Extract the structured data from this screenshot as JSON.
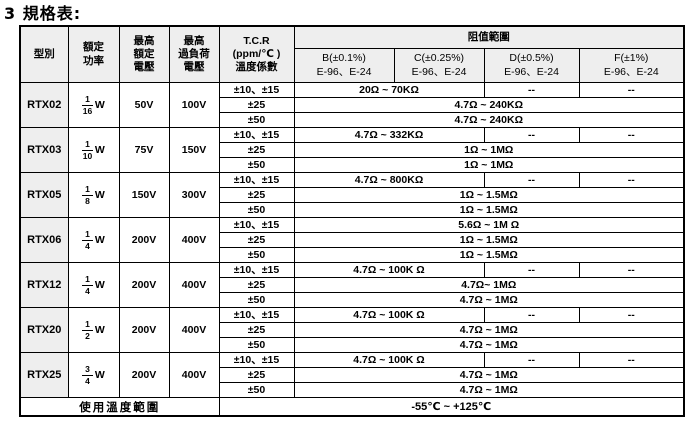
{
  "title": "3 規格表:",
  "table": {
    "header": {
      "model": "型別",
      "rated_power": "額定\n功率",
      "max_rated_voltage": "最高\n額定\n電壓",
      "max_overload_voltage": "最高\n過負荷\n電壓",
      "tcr": "T.C.R\n(ppm/℃ )\n溫度係數",
      "resistance_range": "阻值範圍",
      "tolerance_columns": [
        "B(±0.1%)\nE-96、E-24",
        "C(±0.25%)\nE-96、E-24",
        "D(±0.5%)\nE-96、E-24",
        "F(±1%)\nE-96、E-24"
      ]
    },
    "groups": [
      {
        "model": "RTX02",
        "power": {
          "num": "1",
          "den": "16",
          "unit": "W"
        },
        "rated_voltage": "50V",
        "overload_voltage": "100V",
        "rows": [
          {
            "tcr": "±10、±15",
            "cells": [
              {
                "text": "20Ω ~ 70KΩ",
                "span": 2
              },
              {
                "text": "--",
                "span": 1
              },
              {
                "text": "--",
                "span": 1
              }
            ]
          },
          {
            "tcr": "±25",
            "cells": [
              {
                "text": "4.7Ω ~ 240KΩ",
                "span": 4
              }
            ]
          },
          {
            "tcr": "±50",
            "cells": [
              {
                "text": "4.7Ω ~ 240KΩ",
                "span": 4
              }
            ]
          }
        ]
      },
      {
        "model": "RTX03",
        "power": {
          "num": "1",
          "den": "10",
          "unit": "W"
        },
        "rated_voltage": "75V",
        "overload_voltage": "150V",
        "rows": [
          {
            "tcr": "±10、±15",
            "cells": [
              {
                "text": "4.7Ω ~ 332KΩ",
                "span": 2
              },
              {
                "text": "--",
                "span": 1
              },
              {
                "text": "--",
                "span": 1
              }
            ]
          },
          {
            "tcr": "±25",
            "cells": [
              {
                "text": "1Ω ~ 1MΩ",
                "span": 4
              }
            ]
          },
          {
            "tcr": "±50",
            "cells": [
              {
                "text": "1Ω ~ 1MΩ",
                "span": 4
              }
            ]
          }
        ]
      },
      {
        "model": "RTX05",
        "power": {
          "num": "1",
          "den": "8",
          "unit": "W"
        },
        "rated_voltage": "150V",
        "overload_voltage": "300V",
        "rows": [
          {
            "tcr": "±10、±15",
            "cells": [
              {
                "text": "4.7Ω ~ 800KΩ",
                "span": 2
              },
              {
                "text": "--",
                "span": 1
              },
              {
                "text": "--",
                "span": 1
              }
            ]
          },
          {
            "tcr": "±25",
            "cells": [
              {
                "text": "1Ω ~ 1.5MΩ",
                "span": 4
              }
            ]
          },
          {
            "tcr": "±50",
            "cells": [
              {
                "text": "1Ω ~ 1.5MΩ",
                "span": 4
              }
            ]
          }
        ]
      },
      {
        "model": "RTX06",
        "power": {
          "num": "1",
          "den": "4",
          "unit": "W"
        },
        "rated_voltage": "200V",
        "overload_voltage": "400V",
        "rows": [
          {
            "tcr": "±10、±15",
            "cells": [
              {
                "text": "5.6Ω ~ 1M Ω",
                "span": 4
              }
            ]
          },
          {
            "tcr": "±25",
            "cells": [
              {
                "text": "1Ω ~ 1.5MΩ",
                "span": 4
              }
            ]
          },
          {
            "tcr": "±50",
            "cells": [
              {
                "text": "1Ω ~ 1.5MΩ",
                "span": 4
              }
            ]
          }
        ]
      },
      {
        "model": "RTX12",
        "power": {
          "num": "1",
          "den": "4",
          "unit": "W"
        },
        "rated_voltage": "200V",
        "overload_voltage": "400V",
        "rows": [
          {
            "tcr": "±10、±15",
            "cells": [
              {
                "text": "4.7Ω ~ 100K Ω",
                "span": 2
              },
              {
                "text": "--",
                "span": 1
              },
              {
                "text": "--",
                "span": 1
              }
            ]
          },
          {
            "tcr": "±25",
            "cells": [
              {
                "text": "4.7Ω~ 1MΩ",
                "span": 4
              }
            ]
          },
          {
            "tcr": "±50",
            "cells": [
              {
                "text": "4.7Ω ~ 1MΩ",
                "span": 4
              }
            ]
          }
        ]
      },
      {
        "model": "RTX20",
        "power": {
          "num": "1",
          "den": "2",
          "unit": "W"
        },
        "rated_voltage": "200V",
        "overload_voltage": "400V",
        "rows": [
          {
            "tcr": "±10、±15",
            "cells": [
              {
                "text": "4.7Ω ~ 100K Ω",
                "span": 2
              },
              {
                "text": "--",
                "span": 1
              },
              {
                "text": "--",
                "span": 1
              }
            ]
          },
          {
            "tcr": "±25",
            "cells": [
              {
                "text": "4.7Ω ~ 1MΩ",
                "span": 4
              }
            ]
          },
          {
            "tcr": "±50",
            "cells": [
              {
                "text": "4.7Ω ~ 1MΩ",
                "span": 4
              }
            ]
          }
        ]
      },
      {
        "model": "RTX25",
        "power": {
          "num": "3",
          "den": "4",
          "unit": "W"
        },
        "rated_voltage": "200V",
        "overload_voltage": "400V",
        "rows": [
          {
            "tcr": "±10、±15",
            "cells": [
              {
                "text": "4.7Ω ~ 100K Ω",
                "span": 2
              },
              {
                "text": "--",
                "span": 1
              },
              {
                "text": "--",
                "span": 1
              }
            ]
          },
          {
            "tcr": "±25",
            "cells": [
              {
                "text": "4.7Ω ~ 1MΩ",
                "span": 4
              }
            ]
          },
          {
            "tcr": "±50",
            "cells": [
              {
                "text": "4.7Ω ~ 1MΩ",
                "span": 4
              }
            ]
          }
        ]
      }
    ],
    "footer": {
      "label": "使用溫度範圍",
      "value": "-55℃ ~ +125℃"
    }
  }
}
